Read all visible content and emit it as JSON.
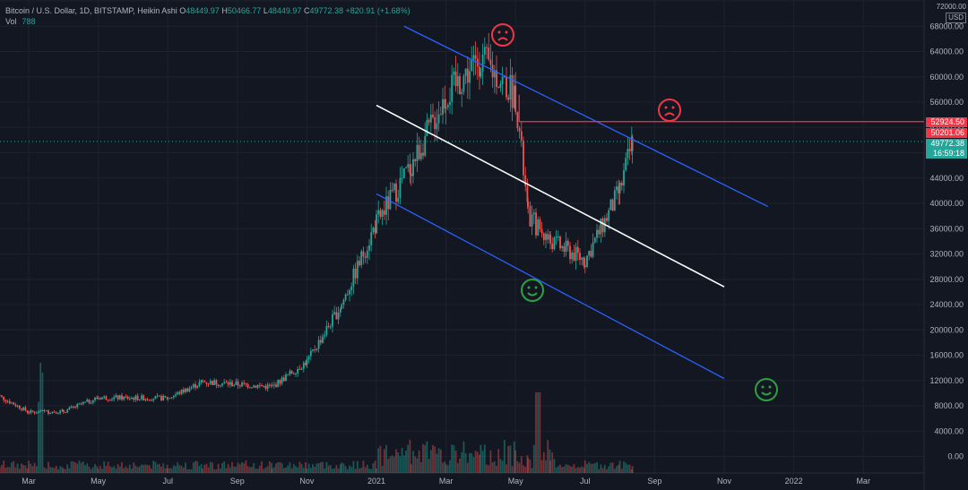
{
  "symbol_line": {
    "symbol": "Bitcoin / U.S. Dollar, 1D, BITSTAMP, Heikin Ashi",
    "o_label": "O",
    "o_value": "48449.97",
    "h_label": "H",
    "h_value": "50466.77",
    "l_label": "L",
    "l_value": "48449.97",
    "c_label": "C",
    "c_value": "49772.38",
    "change": "+820.91 (+1.68%)"
  },
  "volume_line": {
    "label": "Vol",
    "value": "788"
  },
  "currency": {
    "top_tick": "72000.00",
    "label": "USD"
  },
  "price_labels": {
    "resistance": "52924.50",
    "red_tag": "50201.06",
    "last_price": "49772.38",
    "countdown": "16:59:18"
  },
  "colors": {
    "background": "#131722",
    "up": "#26a69a",
    "down": "#ef5350",
    "channel": "#2962ff",
    "midline": "#ffffff",
    "resistance": "#f23645",
    "sad_face": "#f23645",
    "happy_face": "#2ea043",
    "grid": "#1e222d"
  },
  "annotations": [
    "sad-face",
    "sad-face",
    "happy-face",
    "happy-face"
  ],
  "chart_data": {
    "type": "candlestick",
    "y_axis": {
      "ticks": [
        72000,
        68000,
        64000,
        60000,
        56000,
        52000,
        48000,
        44000,
        40000,
        36000,
        32000,
        28000,
        24000,
        20000,
        16000,
        12000,
        8000,
        4000,
        0
      ],
      "tick_labels": [
        "72000.00",
        "68000.00",
        "64000.00",
        "60000.00",
        "56000.00",
        "52000.00",
        "48000.00",
        "44000.00",
        "40000.00",
        "36000.00",
        "32000.00",
        "28000.00",
        "24000.00",
        "20000.00",
        "16000.00",
        "12000.00",
        "8000.00",
        "4000.00",
        "0.00"
      ]
    },
    "x_axis": {
      "tick_labels": [
        "Mar",
        "May",
        "Jul",
        "Sep",
        "Nov",
        "2021",
        "Mar",
        "May",
        "Jul",
        "Sep",
        "Nov",
        "2022",
        "Mar"
      ],
      "tick_dates": [
        "2020-03",
        "2020-05",
        "2020-07",
        "2020-09",
        "2020-11",
        "2021-01",
        "2021-03",
        "2021-05",
        "2021-07",
        "2021-09",
        "2021-11",
        "2022-01",
        "2022-03"
      ]
    },
    "price_path": [
      [
        "2020-02",
        10000
      ],
      [
        "2020-03",
        7000
      ],
      [
        "2020-04",
        7100
      ],
      [
        "2020-05",
        9300
      ],
      [
        "2020-07",
        9200
      ],
      [
        "2020-08",
        11800
      ],
      [
        "2020-10",
        11000
      ],
      [
        "2020-11",
        15000
      ],
      [
        "2020-12",
        24000
      ],
      [
        "2021-01",
        37000
      ],
      [
        "2021-02",
        46000
      ],
      [
        "2021-03",
        57000
      ],
      [
        "2021-04",
        63000
      ],
      [
        "2021-05",
        57000
      ],
      [
        "2021-05",
        38000
      ],
      [
        "2021-06",
        34000
      ],
      [
        "2021-07",
        31000
      ],
      [
        "2021-08",
        42000
      ],
      [
        "2021-08",
        49772
      ]
    ],
    "trend_lines": [
      {
        "name": "upper-channel",
        "from": [
          "2021-02",
          68000
        ],
        "to": [
          "2021-12",
          39500
        ]
      },
      {
        "name": "midline",
        "from": [
          "2021-01",
          55500
        ],
        "to": [
          "2021-11",
          26800
        ]
      },
      {
        "name": "lower-channel",
        "from": [
          "2021-01",
          41500
        ],
        "to": [
          "2021-11",
          12300
        ]
      }
    ],
    "horizontal_line": {
      "name": "resistance",
      "from": "2021-05",
      "value": 52924.5
    },
    "volume": "bars at bottom, spike around 2020-03 and 2021-01/2021-05"
  }
}
